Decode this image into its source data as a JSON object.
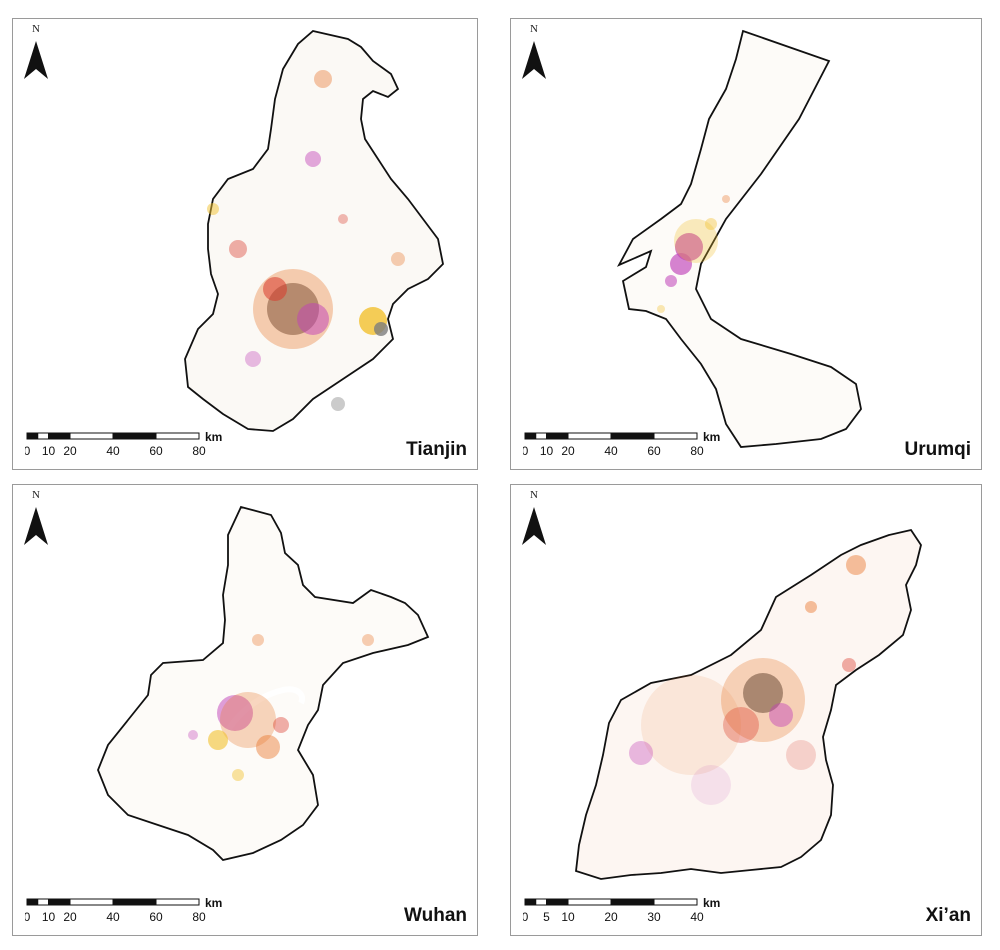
{
  "panels": [
    {
      "id": "tianjin",
      "city": "Tianjin",
      "north_label": "N",
      "scale": {
        "unit": "km",
        "ticks": [
          "0",
          "10",
          "20",
          "40",
          "60",
          "80"
        ],
        "tick_values": [
          0,
          10,
          20,
          40,
          60,
          80
        ],
        "max": 80
      }
    },
    {
      "id": "urumqi",
      "city": "Urumqi",
      "north_label": "N",
      "scale": {
        "unit": "km",
        "ticks": [
          "0",
          "10",
          "20",
          "40",
          "60",
          "80"
        ],
        "tick_values": [
          0,
          10,
          20,
          40,
          60,
          80
        ],
        "max": 80
      }
    },
    {
      "id": "wuhan",
      "city": "Wuhan",
      "north_label": "N",
      "scale": {
        "unit": "km",
        "ticks": [
          "0",
          "10",
          "20",
          "40",
          "60",
          "80"
        ],
        "tick_values": [
          0,
          10,
          20,
          40,
          60,
          80
        ],
        "max": 80
      }
    },
    {
      "id": "xian",
      "city": "Xi’an",
      "north_label": "N",
      "scale": {
        "unit": "km",
        "ticks": [
          "0",
          "5",
          "10",
          "20",
          "30",
          "40"
        ],
        "tick_values": [
          0,
          5,
          10,
          20,
          30,
          40
        ],
        "max": 40
      }
    }
  ],
  "colors": {
    "boundary": "#111111",
    "urban_core": "#7d7d7d",
    "orange": "#e8762c",
    "red": "#d93a2b",
    "yellow": "#f2c12e",
    "magenta": "#c040b8",
    "panel_border": "#9a9a9a"
  }
}
